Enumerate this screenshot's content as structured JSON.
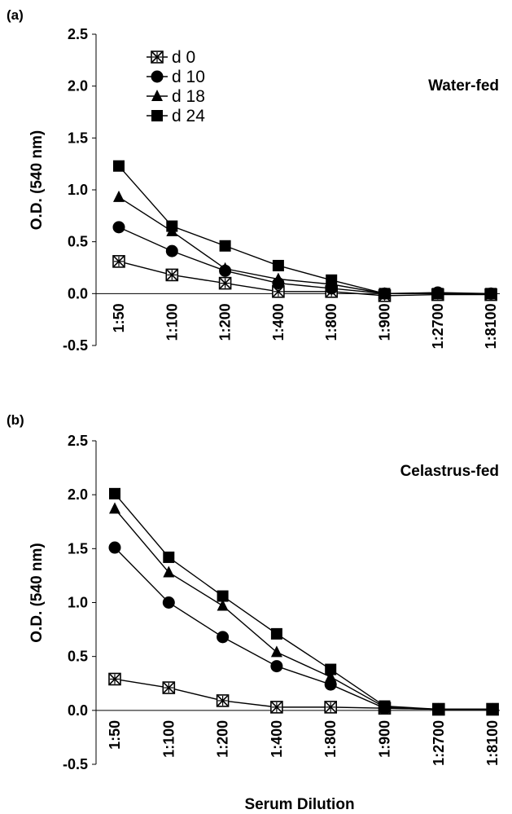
{
  "chart_data": [
    {
      "type": "line",
      "panel_label": "(a)",
      "annotation": "Water-fed",
      "ylabel": "O.D. (540 nm)",
      "xlabel": "",
      "ylim": [
        -0.5,
        2.5
      ],
      "yticks": [
        "2.5",
        "2.0",
        "1.5",
        "1.0",
        "0.5",
        "0.0",
        "-0.5"
      ],
      "categories": [
        "1:50",
        "1:100",
        "1:200",
        "1:400",
        "1:800",
        "1:900",
        "1:2700",
        "1:8100"
      ],
      "legend": "top-left",
      "series": [
        {
          "name": "d 0",
          "marker": "box-x",
          "values": [
            0.31,
            0.18,
            0.1,
            0.02,
            0.02,
            -0.02,
            -0.01,
            -0.01
          ]
        },
        {
          "name": "d 10",
          "marker": "circle",
          "values": [
            0.64,
            0.41,
            0.22,
            0.1,
            0.05,
            0.0,
            0.01,
            0.0
          ]
        },
        {
          "name": "d 18",
          "marker": "triangle",
          "values": [
            0.93,
            0.6,
            0.24,
            0.14,
            0.09,
            0.0,
            0.0,
            0.0
          ]
        },
        {
          "name": "d 24",
          "marker": "square",
          "values": [
            1.23,
            0.65,
            0.46,
            0.27,
            0.13,
            0.0,
            0.0,
            0.0
          ]
        }
      ]
    },
    {
      "type": "line",
      "panel_label": "(b)",
      "annotation": "Celastrus-fed",
      "ylabel": "O.D. (540 nm)",
      "xlabel": "Serum Dilution",
      "ylim": [
        -0.5,
        2.5
      ],
      "yticks": [
        "2.5",
        "2.0",
        "1.5",
        "1.0",
        "0.5",
        "0.0",
        "-0.5"
      ],
      "categories": [
        "1:50",
        "1:100",
        "1:200",
        "1:400",
        "1:800",
        "1:900",
        "1:2700",
        "1:8100"
      ],
      "legend": "none",
      "series": [
        {
          "name": "d 0",
          "marker": "box-x",
          "values": [
            0.29,
            0.21,
            0.09,
            0.03,
            0.03,
            0.02,
            0.01,
            0.01
          ]
        },
        {
          "name": "d 10",
          "marker": "circle",
          "values": [
            1.51,
            1.0,
            0.68,
            0.41,
            0.24,
            0.02,
            0.01,
            0.01
          ]
        },
        {
          "name": "d 18",
          "marker": "triangle",
          "values": [
            1.87,
            1.28,
            0.97,
            0.54,
            0.31,
            0.03,
            0.01,
            0.01
          ]
        },
        {
          "name": "d 24",
          "marker": "square",
          "values": [
            2.01,
            1.42,
            1.06,
            0.71,
            0.38,
            0.04,
            0.01,
            0.01
          ]
        }
      ]
    }
  ]
}
